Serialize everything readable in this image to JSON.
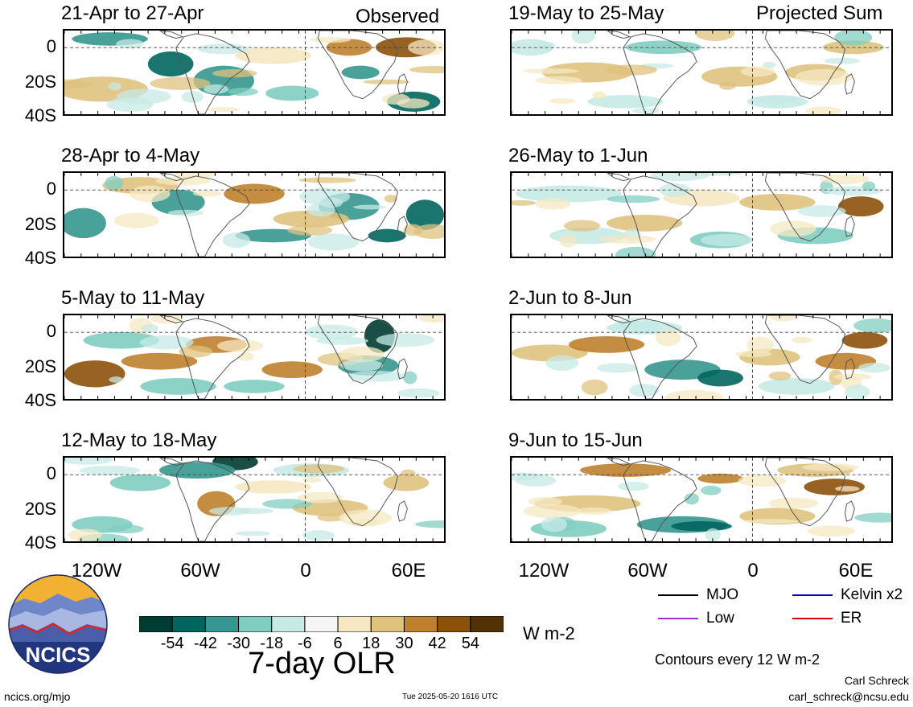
{
  "headers": {
    "observed": "Observed",
    "projected": "Projected Sum"
  },
  "panels": [
    {
      "title": "21-Apr to 27-Apr",
      "column": "left",
      "row": 0
    },
    {
      "title": "28-Apr to 4-May",
      "column": "left",
      "row": 1
    },
    {
      "title": "5-May to 11-May",
      "column": "left",
      "row": 2
    },
    {
      "title": "12-May to 18-May",
      "column": "left",
      "row": 3
    },
    {
      "title": "19-May to 25-May",
      "column": "right",
      "row": 0
    },
    {
      "title": "26-May to 1-Jun",
      "column": "right",
      "row": 1
    },
    {
      "title": "2-Jun to 8-Jun",
      "column": "right",
      "row": 2
    },
    {
      "title": "9-Jun to 15-Jun",
      "column": "right",
      "row": 3
    }
  ],
  "lat_labels": [
    "0",
    "20S",
    "40S"
  ],
  "lon_labels": [
    "120W",
    "60W",
    "0",
    "60E"
  ],
  "colorbar": {
    "title": "7-day OLR",
    "units": "W m-2",
    "ticks": [
      "-54",
      "-42",
      "-30",
      "-18",
      "-6",
      "6",
      "18",
      "30",
      "42",
      "54"
    ],
    "colors": [
      "#003c30",
      "#01665e",
      "#35978f",
      "#80cdc1",
      "#c7eae5",
      "#f5f5f5",
      "#f6e8c3",
      "#dfc27d",
      "#bf812d",
      "#8c510a",
      "#543005"
    ]
  },
  "legend": [
    {
      "label": "MJO",
      "color": "#000000"
    },
    {
      "label": "Kelvin x2",
      "color": "#0000cc"
    },
    {
      "label": "Low",
      "color": "#9933cc"
    },
    {
      "label": "ER",
      "color": "#dd0000"
    }
  ],
  "contour_note": "Contours every 12 W m-2",
  "logo_text": "NCICS",
  "footer": {
    "left": "ncics.org/mjo",
    "center": "Tue 2025-05-20 1616 UTC",
    "author": "Carl Schreck",
    "email": "carl_schreck@ncsu.edu"
  }
}
